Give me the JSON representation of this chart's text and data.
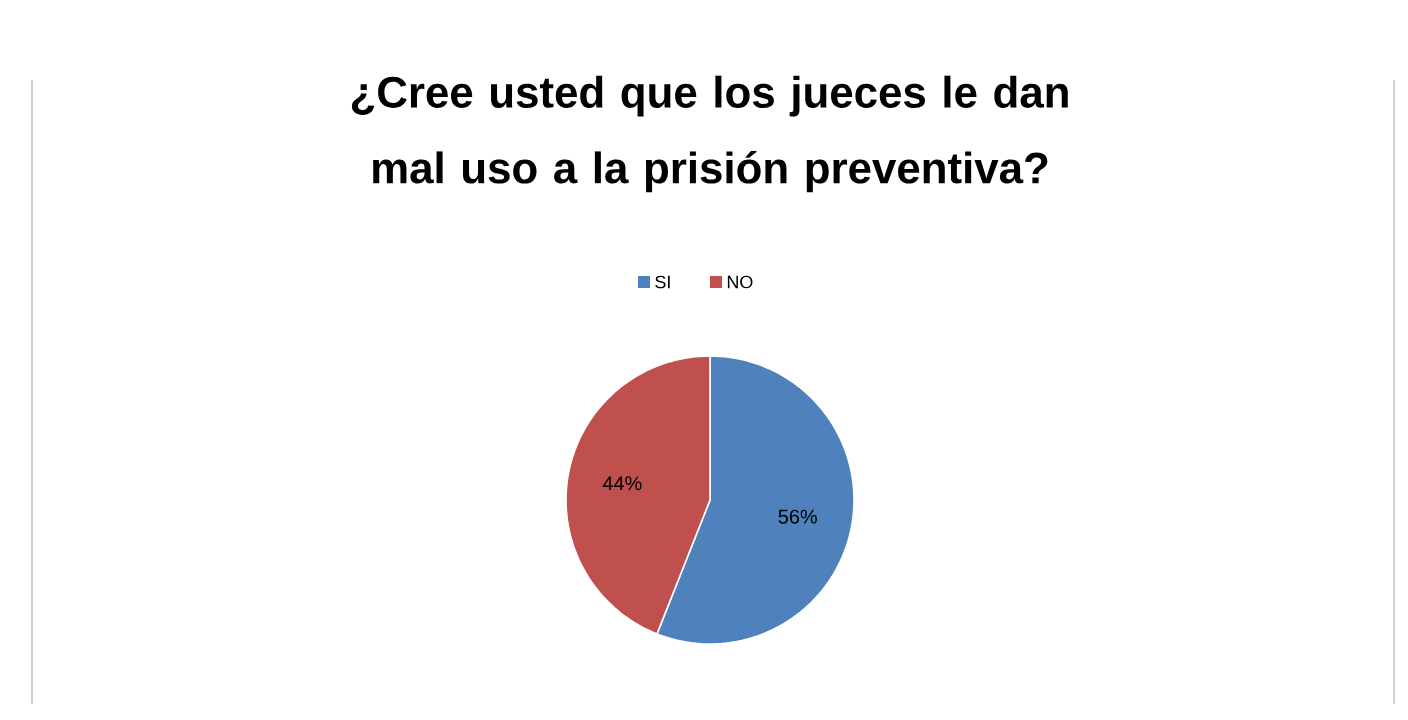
{
  "chart_data": {
    "type": "pie",
    "title": "¿Cree usted que los jueces le dan mal uso a la prisión preventiva?",
    "categories": [
      "SI",
      "NO"
    ],
    "values": [
      56,
      44
    ],
    "colors": [
      "#4f81bd",
      "#c0504d"
    ],
    "value_labels": [
      "56%",
      "44%"
    ],
    "legend": "top"
  }
}
